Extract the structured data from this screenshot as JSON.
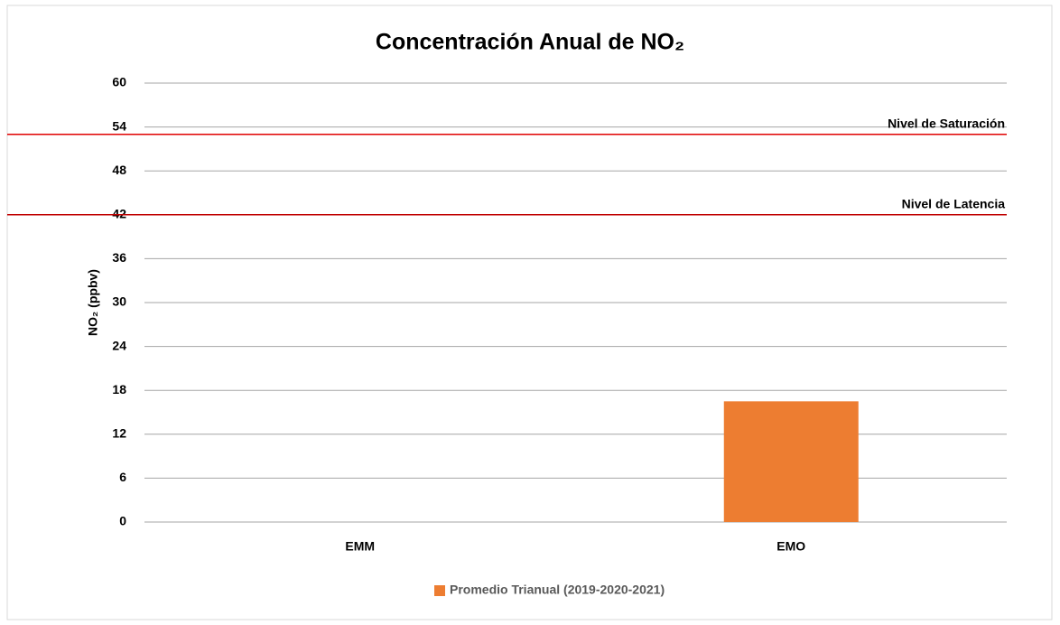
{
  "chart_data": {
    "type": "bar",
    "title": "Concentración Anual de NO₂",
    "y_label": "NO₂ (ppbv)",
    "categories": [
      "EMM",
      "EMO"
    ],
    "series": [
      {
        "name": "Promedio Trianual (2019-2020-2021)",
        "color": "#ed7d31",
        "values": [
          null,
          16.5
        ]
      }
    ],
    "ylim": [
      0,
      60
    ],
    "yticks": [
      0,
      6,
      12,
      18,
      24,
      30,
      36,
      42,
      48,
      54,
      60
    ],
    "grid": true,
    "reference_lines": [
      {
        "value": 53,
        "label": "Nivel de Saturación",
        "color": "#e00000"
      },
      {
        "value": 42,
        "label": "Nivel de Latencia",
        "color": "#c00000"
      }
    ],
    "legend": "bottom"
  }
}
